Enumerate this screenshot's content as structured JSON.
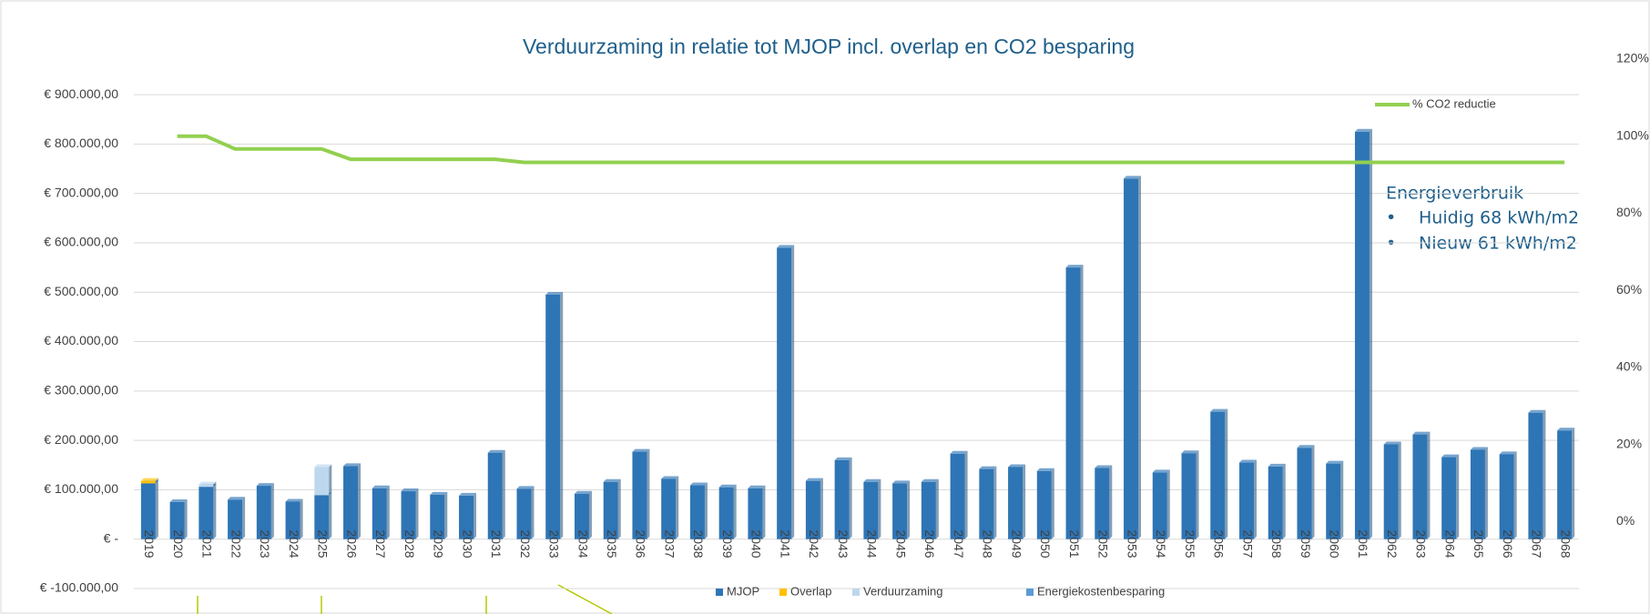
{
  "chart_data": {
    "type": "bar",
    "title": "Verduurzaming in relatie tot MJOP incl. overlap en CO2 besparing",
    "categories": [
      "2019",
      "2020",
      "2021",
      "2022",
      "2023",
      "2024",
      "2025",
      "2026",
      "2027",
      "2028",
      "2029",
      "2030",
      "2031",
      "2032",
      "2033",
      "2034",
      "2035",
      "2036",
      "2037",
      "2038",
      "2039",
      "2040",
      "2041",
      "2042",
      "2043",
      "2044",
      "2045",
      "2046",
      "2047",
      "2048",
      "2049",
      "2050",
      "2051",
      "2052",
      "2053",
      "2054",
      "2055",
      "2056",
      "2057",
      "2058",
      "2059",
      "2060",
      "2061",
      "2062",
      "2063",
      "2064",
      "2065",
      "2066",
      "2067",
      "2068"
    ],
    "series": [
      {
        "name": "MJOP",
        "color": "#2e75b6",
        "values": [
          113000,
          75000,
          106000,
          80000,
          108000,
          76000,
          89000,
          148000,
          103000,
          97000,
          90000,
          88000,
          175000,
          102000,
          495000,
          92000,
          116000,
          177000,
          122000,
          109000,
          105000,
          103000,
          590000,
          118000,
          160000,
          116000,
          113000,
          116000,
          173000,
          142000,
          146000,
          138000,
          550000,
          144000,
          730000,
          135000,
          174000,
          258000,
          155000,
          147000,
          185000,
          153000,
          825000,
          192000,
          212000,
          166000,
          181000,
          172000,
          256000,
          220000
        ]
      },
      {
        "name": "Overlap",
        "color": "#ffc000",
        "values": [
          5000,
          0,
          0,
          0,
          0,
          0,
          0,
          0,
          0,
          0,
          0,
          0,
          0,
          0,
          0,
          0,
          0,
          0,
          0,
          0,
          0,
          0,
          0,
          0,
          0,
          0,
          0,
          0,
          0,
          0,
          0,
          0,
          0,
          0,
          0,
          0,
          0,
          0,
          0,
          0,
          0,
          0,
          0,
          0,
          0,
          0,
          0,
          0,
          0,
          0
        ]
      },
      {
        "name": "Verduurzaming",
        "color": "#bdd7ee",
        "values": [
          0,
          0,
          5000,
          0,
          0,
          0,
          57000,
          0,
          0,
          0,
          0,
          0,
          0,
          0,
          0,
          0,
          0,
          0,
          0,
          0,
          0,
          0,
          0,
          0,
          0,
          0,
          0,
          0,
          0,
          0,
          0,
          0,
          0,
          0,
          0,
          0,
          0,
          0,
          0,
          0,
          0,
          0,
          0,
          0,
          0,
          0,
          0,
          0,
          0,
          0
        ]
      },
      {
        "name": "Energiekostenbesparing",
        "color": "#5b9bd5",
        "values": [
          0,
          0,
          0,
          0,
          0,
          0,
          0,
          0,
          0,
          0,
          0,
          0,
          0,
          0,
          0,
          0,
          0,
          0,
          0,
          0,
          0,
          0,
          0,
          0,
          0,
          0,
          0,
          0,
          0,
          0,
          0,
          0,
          0,
          0,
          0,
          0,
          0,
          0,
          0,
          0,
          0,
          0,
          0,
          0,
          0,
          0,
          0,
          0,
          0,
          0
        ]
      },
      {
        "name": "% CO2 reductie",
        "color": "#92d050",
        "axis": "y2",
        "type": "line",
        "values": [
          null,
          100,
          100,
          96.7,
          96.7,
          96.7,
          96.7,
          94,
          94,
          94,
          94,
          94,
          94,
          93.2,
          93.2,
          93.2,
          93.2,
          93.2,
          93.2,
          93.2,
          93.2,
          93.2,
          93.2,
          93.2,
          93.2,
          93.2,
          93.2,
          93.2,
          93.2,
          93.2,
          93.2,
          93.2,
          93.2,
          93.2,
          93.2,
          93.2,
          93.2,
          93.2,
          93.2,
          93.2,
          93.2,
          93.2,
          93.2,
          93.2,
          93.2,
          93.2,
          93.2,
          93.2,
          93.2,
          93.2
        ]
      }
    ],
    "ylim": [
      -100000,
      972000
    ],
    "yticks": [
      {
        "value": -100000,
        "label": "€ -100.000,00"
      },
      {
        "value": 0,
        "label": "€ -"
      },
      {
        "value": 100000,
        "label": "€ 100.000,00"
      },
      {
        "value": 200000,
        "label": "€ 200.000,00"
      },
      {
        "value": 300000,
        "label": "€ 300.000,00"
      },
      {
        "value": 400000,
        "label": "€ 400.000,00"
      },
      {
        "value": 500000,
        "label": "€ 500.000,00"
      },
      {
        "value": 600000,
        "label": "€ 600.000,00"
      },
      {
        "value": 700000,
        "label": "€ 700.000,00"
      },
      {
        "value": 800000,
        "label": "€ 800.000,00"
      },
      {
        "value": 900000,
        "label": "€ 900.000,00"
      }
    ],
    "y2lim": [
      -17.4,
      120
    ],
    "y2ticks": [
      {
        "value": 0,
        "label": "0%"
      },
      {
        "value": 20,
        "label": "20%"
      },
      {
        "value": 40,
        "label": "40%"
      },
      {
        "value": 60,
        "label": "60%"
      },
      {
        "value": 80,
        "label": "80%"
      },
      {
        "value": 100,
        "label": "100%"
      },
      {
        "value": 120,
        "label": "120%"
      }
    ],
    "grid": true,
    "annotations": [
      "Energieverbruik",
      "Huidig 68 kWh/m2",
      "Nieuw 61 kWh/m2"
    ]
  }
}
